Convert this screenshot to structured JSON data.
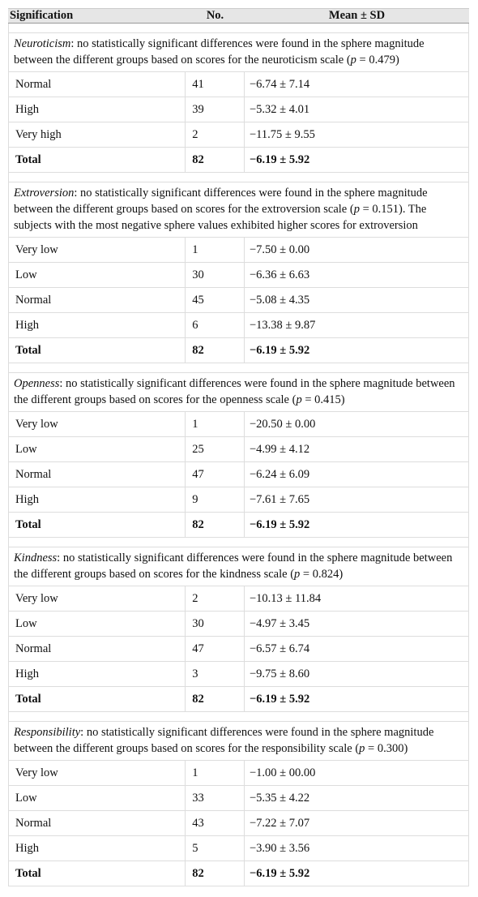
{
  "table": {
    "header": [
      "Signification",
      "No.",
      "Mean ± SD"
    ],
    "sections": [
      {
        "note": [
          {
            "text": "Neuroticism",
            "italic": true
          },
          {
            "text": ": no statistically significant differences were found in the sphere magnitude between the different groups based on scores for the neuroticism scale (",
            "italic": false
          },
          {
            "text": "p",
            "italic": true
          },
          {
            "text": " = 0.479)",
            "italic": false
          }
        ],
        "rows": [
          [
            "Normal",
            "41",
            "−6.74 ± 7.14"
          ],
          [
            "High",
            "39",
            "−5.32 ± 4.01"
          ],
          [
            "Very high",
            "2",
            "−11.75 ± 9.55"
          ]
        ],
        "total": [
          "Total",
          "82",
          "−6.19 ± 5.92"
        ]
      },
      {
        "note": [
          {
            "text": "Extroversion",
            "italic": true
          },
          {
            "text": ": no statistically significant differences were found in the sphere magnitude between the different groups based on scores for the extroversion scale (",
            "italic": false
          },
          {
            "text": "p",
            "italic": true
          },
          {
            "text": " = 0.151). The subjects with the most negative sphere values exhibited higher scores for extroversion",
            "italic": false
          }
        ],
        "rows": [
          [
            "Very low",
            "1",
            "−7.50 ± 0.00"
          ],
          [
            "Low",
            "30",
            "−6.36 ± 6.63"
          ],
          [
            "Normal",
            "45",
            "−5.08 ± 4.35"
          ],
          [
            "High",
            "6",
            "−13.38 ± 9.87"
          ]
        ],
        "total": [
          "Total",
          "82",
          "−6.19 ± 5.92"
        ]
      },
      {
        "note": [
          {
            "text": "Openness",
            "italic": true
          },
          {
            "text": ": no statistically significant differences were found in the sphere magnitude between the different groups based on scores for the openness scale (",
            "italic": false
          },
          {
            "text": "p",
            "italic": true
          },
          {
            "text": " = 0.415)",
            "italic": false
          }
        ],
        "rows": [
          [
            "Very low",
            "1",
            "−20.50 ± 0.00"
          ],
          [
            "Low",
            "25",
            "−4.99 ± 4.12"
          ],
          [
            "Normal",
            "47",
            "−6.24 ± 6.09"
          ],
          [
            "High",
            "9",
            "−7.61 ± 7.65"
          ]
        ],
        "total": [
          "Total",
          "82",
          "−6.19 ± 5.92"
        ]
      },
      {
        "note": [
          {
            "text": "Kindness",
            "italic": true
          },
          {
            "text": ": no statistically significant differences were found in the sphere magnitude between the different groups based on scores for the kindness scale (",
            "italic": false
          },
          {
            "text": "p",
            "italic": true
          },
          {
            "text": " = 0.824)",
            "italic": false
          }
        ],
        "rows": [
          [
            "Very low",
            "2",
            "−10.13 ± 11.84"
          ],
          [
            "Low",
            "30",
            "−4.97 ± 3.45"
          ],
          [
            "Normal",
            "47",
            "−6.57 ± 6.74"
          ],
          [
            "High",
            "3",
            "−9.75 ± 8.60"
          ]
        ],
        "total": [
          "Total",
          "82",
          "−6.19 ± 5.92"
        ]
      },
      {
        "note": [
          {
            "text": "Responsibility",
            "italic": true
          },
          {
            "text": ": no statistically significant differences were found in the sphere magnitude between the different groups based on scores for the responsibility scale (",
            "italic": false
          },
          {
            "text": "p",
            "italic": true
          },
          {
            "text": " = 0.300)",
            "italic": false
          }
        ],
        "rows": [
          [
            "Very low",
            "1",
            "−1.00 ± 00.00"
          ],
          [
            "Low",
            "33",
            "−5.35 ± 4.22"
          ],
          [
            "Normal",
            "43",
            "−7.22 ± 7.07"
          ],
          [
            "High",
            "5",
            "−3.90 ± 3.56"
          ]
        ],
        "total": [
          "Total",
          "82",
          "−6.19 ± 5.92"
        ]
      }
    ]
  }
}
